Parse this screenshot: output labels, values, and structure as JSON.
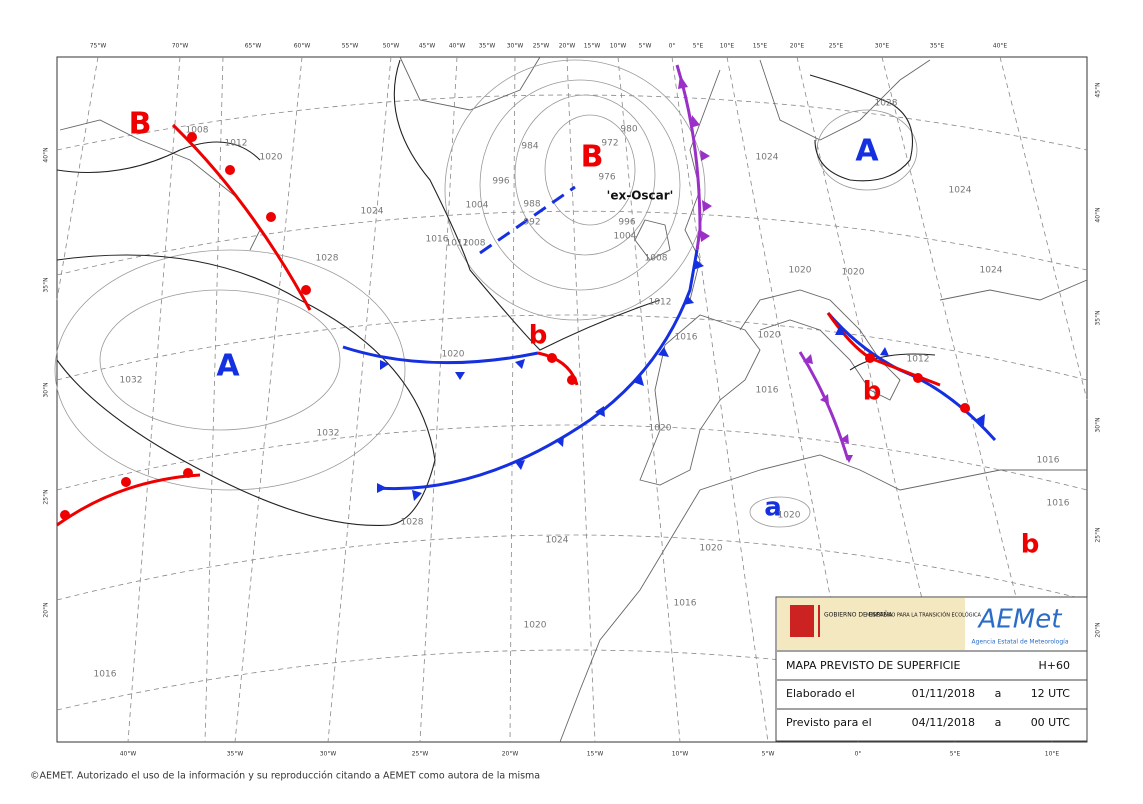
{
  "map": {
    "top_longitudes": [
      "75°W",
      "70°W",
      "65°W",
      "60°W",
      "55°W",
      "50°W",
      "45°W",
      "40°W",
      "35°W",
      "30°W",
      "25°W",
      "20°W",
      "15°W",
      "10°W",
      "5°W",
      "0°",
      "5°E",
      "10°E",
      "15°E",
      "20°E",
      "25°E",
      "30°E",
      "35°E",
      "40°E"
    ],
    "bottom_longitudes": [
      "40°W",
      "35°W",
      "30°W",
      "25°W",
      "20°W",
      "15°W",
      "10°W",
      "5°W",
      "0°",
      "5°E",
      "10°E"
    ],
    "left_latitudes": [
      "40°N",
      "35°N",
      "30°N",
      "25°N",
      "20°N"
    ],
    "right_latitudes": [
      "45°N",
      "40°N",
      "35°N",
      "30°N",
      "25°N",
      "20°N"
    ],
    "pressure_centers": [
      "B",
      "B",
      "A",
      "A",
      "b",
      "b",
      "a",
      "b"
    ],
    "storm_name": "'ex-Oscar'",
    "isobar_labels": [
      "1008",
      "1012",
      "1020",
      "1028",
      "1024",
      "1016",
      "1012",
      "1008",
      "1004",
      "996",
      "988",
      "992",
      "984",
      "980",
      "972",
      "976",
      "996",
      "1004",
      "1008",
      "1012",
      "1016",
      "1020",
      "1032",
      "1032",
      "1028",
      "1024",
      "1020",
      "1020",
      "1016",
      "1020",
      "1016",
      "1020",
      "1020",
      "1016",
      "1012",
      "1028",
      "1024",
      "1024",
      "1020",
      "1020",
      "1024",
      "1016",
      "1016"
    ]
  },
  "legend": {
    "government": "GOBIERNO DE ESPAÑA",
    "ministry": "MINISTERIO PARA LA TRANSICIÓN ECOLÓGICA",
    "agency_logo": "AEMet",
    "agency_name": "Agencia Estatal de Meteorología",
    "title": "MAPA PREVISTO DE SUPERFICIE",
    "lead_time": "H+60",
    "rows": [
      [
        "Elaborado el",
        "01/11/2018",
        "a",
        "12 UTC"
      ],
      [
        "Previsto para el",
        "04/11/2018",
        "a",
        "00 UTC"
      ]
    ]
  },
  "footer": "©AEMET. Autorizado el uso de la información y su reproducción citando a AEMET como autora de la misma"
}
